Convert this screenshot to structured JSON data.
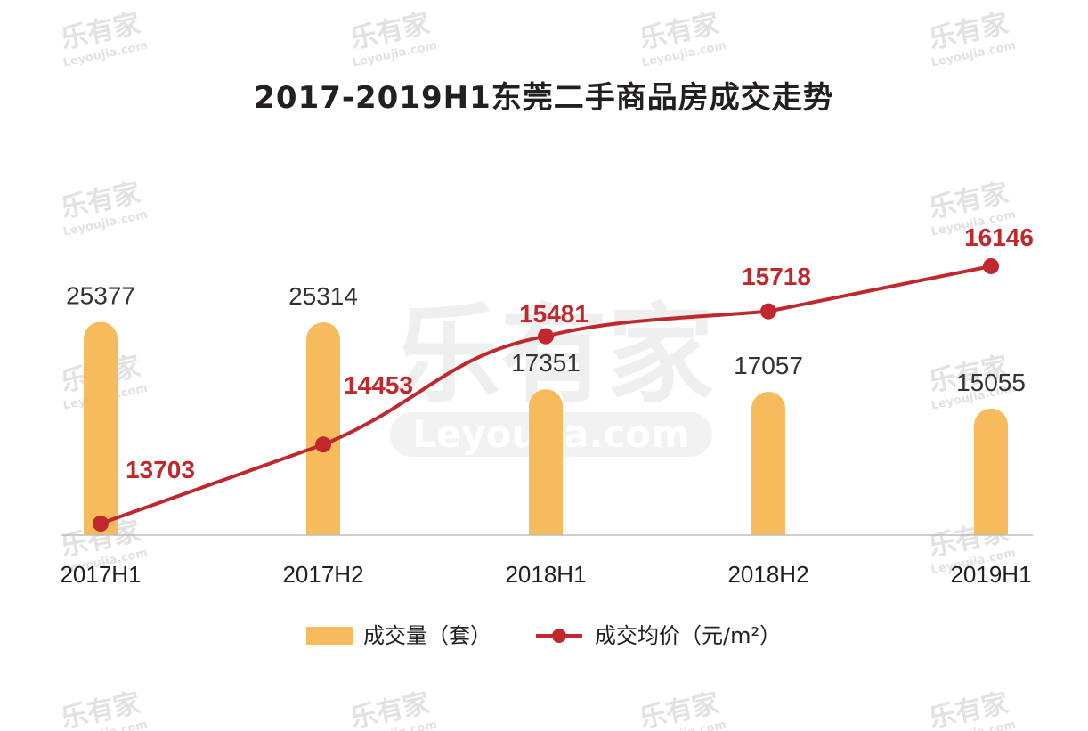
{
  "chart_data": {
    "type": "bar+line",
    "title": "2017-2019H1东莞二手商品房成交走势",
    "categories": [
      "2017H1",
      "2017H2",
      "2018H1",
      "2018H2",
      "2019H1"
    ],
    "series": [
      {
        "name": "成交量（套）",
        "type": "bar",
        "color": "#f5bb5c",
        "values": [
          25377,
          25314,
          17351,
          17057,
          15055
        ],
        "labels": [
          "25377",
          "25314",
          "17351",
          "17057",
          "15055"
        ]
      },
      {
        "name": "成交均价（元/m²）",
        "type": "line",
        "color": "#c0282d",
        "values": [
          13703,
          14453,
          15481,
          15718,
          16146
        ],
        "labels": [
          "13703",
          "14453",
          "15481",
          "15718",
          "16146"
        ]
      }
    ],
    "legend": "bottom",
    "grid": false
  },
  "watermark": {
    "brand": "乐有家",
    "site": "Leyoujia.com"
  }
}
